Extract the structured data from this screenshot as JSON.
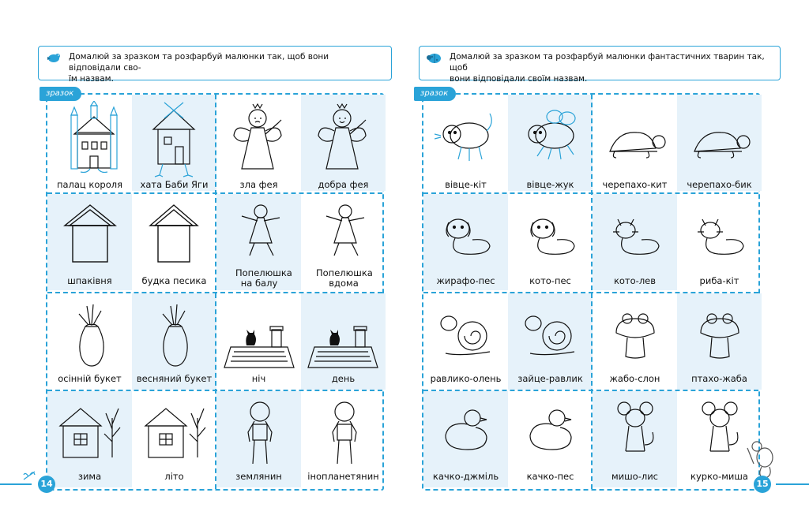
{
  "left_page": {
    "instruction": "Домалюй за зразком та розфарбуй малюнки так, щоб вони відповідали сво-",
    "instruction_2": "їм назвам.",
    "sample_tag": "зразок",
    "page_number": "14",
    "cells": [
      [
        "палац короля",
        "хата Баби Яги",
        "зла фея",
        "добра фея"
      ],
      [
        "шпаківня",
        "будка песика",
        "Попелюшка на балу",
        "Попелюшка вдома"
      ],
      [
        "осінній букет",
        "весняний букет",
        "ніч",
        "день"
      ],
      [
        "зима",
        "літо",
        "землянин",
        "інопланетянин"
      ]
    ]
  },
  "right_page": {
    "instruction": "Домалюй за зразком та розфарбуй малюнки фантастичних тварин так, щоб",
    "instruction_2": "вони відповідали своїм назвам.",
    "sample_tag": "зразок",
    "page_number": "15",
    "cells": [
      [
        "вівце-кіт",
        "вівце-жук",
        "черепахо-кит",
        "черепахо-бик"
      ],
      [
        "жирафо-пес",
        "кото-пес",
        "кото-лев",
        "риба-кіт"
      ],
      [
        "равлико-олень",
        "зайце-равлик",
        "жабо-слон",
        "птахо-жаба"
      ],
      [
        "качко-джміль",
        "качко-пес",
        "мишо-лис",
        "курко-миша"
      ]
    ]
  },
  "colors": {
    "accent": "#2aa3d8",
    "shade": "#e6f2fa"
  }
}
